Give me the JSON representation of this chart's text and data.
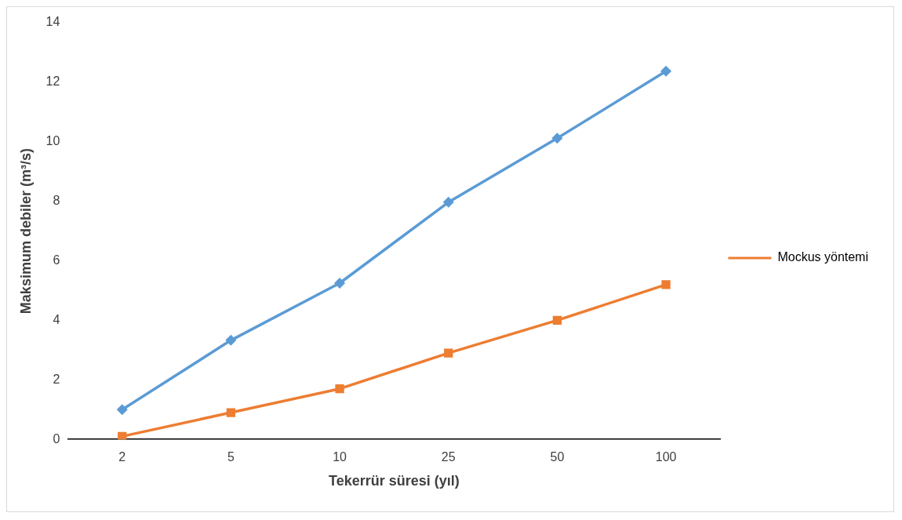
{
  "chart_data": {
    "type": "line",
    "xlabel": "Tekerrür süresi (yıl)",
    "ylabel": "Maksimum debiler (m³/s)",
    "categories": [
      "2",
      "5",
      "10",
      "25",
      "50",
      "100"
    ],
    "series": [
      {
        "color": "#5b9bd5",
        "marker": "diamond",
        "values": [
          1.0,
          3.33,
          5.25,
          7.97,
          10.12,
          12.37
        ]
      },
      {
        "name": "Mockus yöntemi",
        "color": "#ed7d31",
        "marker": "square",
        "values": [
          0.1,
          0.9,
          1.7,
          2.9,
          4.0,
          5.2
        ]
      }
    ],
    "ylim": [
      0,
      14
    ],
    "yticks": [
      0,
      2,
      4,
      6,
      8,
      10,
      12,
      14
    ],
    "grid": false,
    "legend": "right",
    "line_style": "solid"
  }
}
